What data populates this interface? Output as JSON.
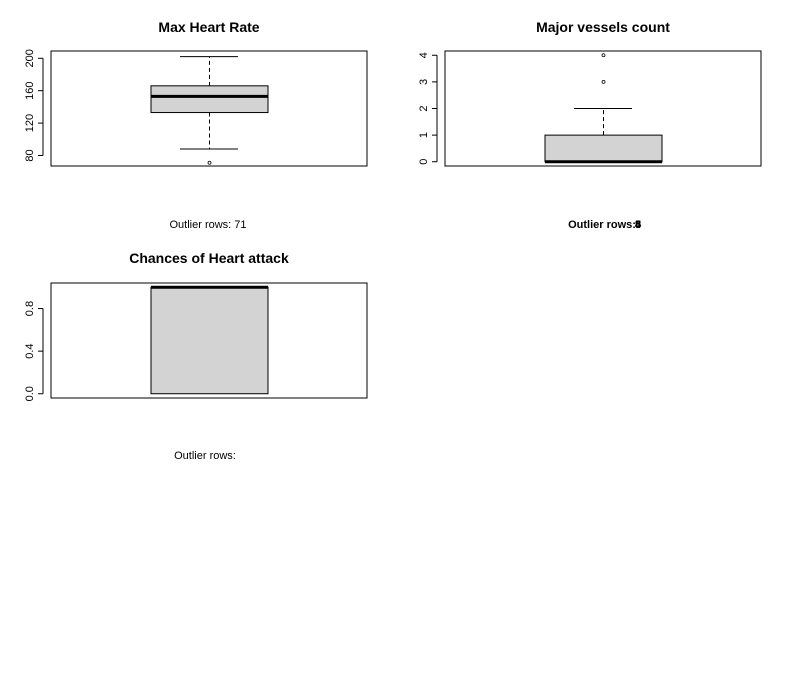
{
  "chart_data": [
    {
      "type": "box",
      "title": "Max Heart Rate",
      "ylim": [
        67,
        209
      ],
      "yticks": [
        80,
        120,
        160,
        200
      ],
      "box": {
        "lower_whisker": 88,
        "q1": 133,
        "median": 153,
        "q3": 166,
        "upper_whisker": 202,
        "outliers": [
          71
        ]
      },
      "caption": "Outlier rows:  71"
    },
    {
      "type": "box",
      "title": "Major vessels count",
      "ylim": [
        -0.16,
        4.16
      ],
      "yticks": [
        0,
        1,
        2,
        3,
        4
      ],
      "box": {
        "lower_whisker": 0,
        "q1": 0,
        "median": 0,
        "q3": 1,
        "upper_whisker": 2,
        "outliers": [
          3,
          4
        ]
      },
      "caption": "Outlier rows:",
      "caption_overlap": [
        "3",
        "4",
        "5",
        "8"
      ]
    },
    {
      "type": "box",
      "title": "Chances of Heart attack",
      "ylim": [
        -0.04,
        1.04
      ],
      "yticks": [
        0.0,
        0.4,
        0.8
      ],
      "box": {
        "lower_whisker": 0,
        "q1": 0,
        "median": 1,
        "q3": 1,
        "upper_whisker": 1,
        "outliers": []
      },
      "caption": "Outlier rows:"
    }
  ]
}
